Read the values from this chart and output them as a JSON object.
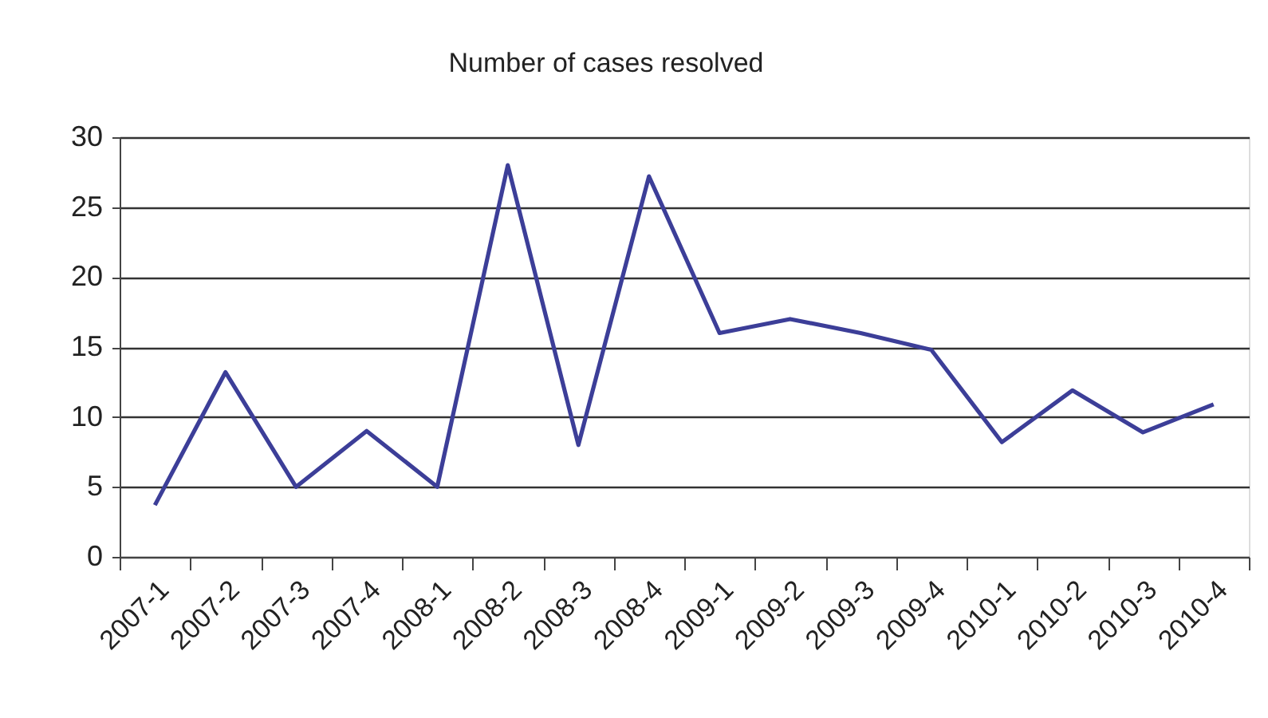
{
  "chart_data": {
    "type": "line",
    "title": "Number of cases resolved",
    "categories": [
      "2007-1",
      "2007-2",
      "2007-3",
      "2007-4",
      "2008-1",
      "2008-2",
      "2008-3",
      "2008-4",
      "2009-1",
      "2009-2",
      "2009-3",
      "2009-4",
      "2010-1",
      "2010-2",
      "2010-3",
      "2010-4"
    ],
    "series": [
      {
        "color": "#3c3e98",
        "values": [
          3.7,
          13.2,
          5,
          9,
          5,
          28,
          8,
          27.2,
          16,
          17,
          16,
          14.8,
          8.2,
          11.9,
          8.9,
          10.9
        ]
      }
    ],
    "ylim": [
      0,
      30
    ],
    "yticks": [
      0,
      5,
      10,
      15,
      20,
      25,
      30
    ],
    "grid": "y"
  }
}
